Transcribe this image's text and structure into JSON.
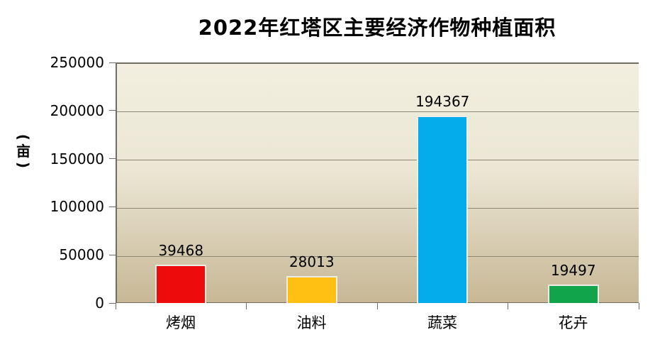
{
  "chart_data": {
    "type": "bar",
    "title": "2022年红塔区主要经济作物种植面积",
    "categories": [
      "烤烟",
      "油料",
      "蔬菜",
      "花卉"
    ],
    "values": [
      39468,
      28013,
      194367,
      19497
    ],
    "bar_colors": [
      "#ee0b0b",
      "#ffc013",
      "#05acec",
      "#12a44b"
    ],
    "ylabel": "(亩)",
    "ylabel_parts": {
      "open": "(",
      "char": "亩",
      "close": ")"
    },
    "ylim": [
      0,
      250000
    ],
    "yticks": [
      0,
      50000,
      100000,
      150000,
      200000,
      250000
    ],
    "ytick_labels": [
      "0",
      "50000",
      "100000",
      "150000",
      "200000",
      "250000"
    ],
    "grid": "horizontal",
    "legend": "none",
    "plot_bg_gradient_top": "#f2efe0",
    "plot_bg_gradient_bottom": "#c7b795",
    "grid_color": "#8a8776",
    "axis_color": "#6f6e62"
  }
}
